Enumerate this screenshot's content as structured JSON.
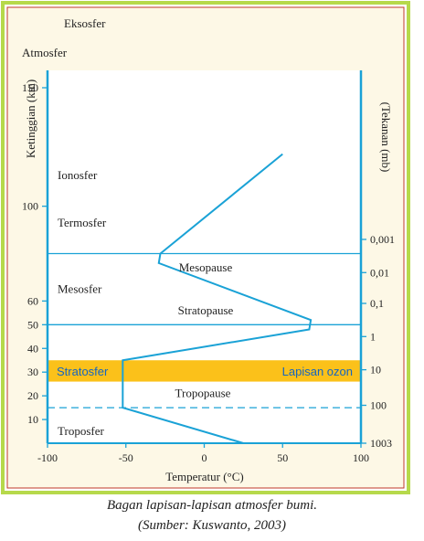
{
  "caption": {
    "line1": "Bagan lapisan-lapisan atmosfer bumi.",
    "line2": "(Sumber: Kuswanto, 2003)"
  },
  "colors": {
    "frame_green": "#b6d94b",
    "frame_red": "#c0392b",
    "background_cream": "#fdf8e6",
    "plot_background": "#ffffff",
    "axis_blue": "#1aa2d6",
    "profile_blue": "#1aa2d6",
    "ozone_band": "#fbc11a",
    "stratosfer_text": "#1565c0",
    "text": "#222222"
  },
  "chart_data": {
    "type": "line",
    "title": "",
    "top_labels": [
      "Eksosfer",
      "Atmosfer"
    ],
    "xlabel": "Temperatur (°C)",
    "ylabel": "Ketinggian (km)",
    "y2label": "(Tekanan (mb)",
    "xlim": [
      -100,
      100
    ],
    "ylim": [
      0,
      150
    ],
    "x_ticks": [
      -100,
      -50,
      0,
      50,
      100
    ],
    "y_ticks": [
      10,
      20,
      30,
      40,
      50,
      60,
      100,
      150
    ],
    "pressure_ticks": [
      {
        "label": "0,001",
        "height_km": 86
      },
      {
        "label": "0,01",
        "height_km": 72
      },
      {
        "label": "0,1",
        "height_km": 59
      },
      {
        "label": "1",
        "height_km": 45
      },
      {
        "label": "10",
        "height_km": 31
      },
      {
        "label": "100",
        "height_km": 16
      },
      {
        "label": "1003",
        "height_km": 0
      }
    ],
    "series": [
      {
        "values": [
          {
            "x": 25,
            "y": 0
          },
          {
            "x": -52,
            "y": 15
          },
          {
            "x": -52,
            "y": 35
          },
          {
            "x": 67,
            "y": 48
          },
          {
            "x": 68,
            "y": 52
          },
          {
            "x": -29,
            "y": 76
          },
          {
            "x": -28,
            "y": 80
          },
          {
            "x": 50,
            "y": 122
          }
        ]
      }
    ],
    "boundaries": [
      {
        "name": "Mesopause",
        "height_km": 80,
        "style": "solid"
      },
      {
        "name": "Stratopause",
        "height_km": 50,
        "style": "solid"
      },
      {
        "name": "Tropopause",
        "height_km": 15,
        "style": "dashed"
      }
    ],
    "layers": [
      {
        "name": "Ionosfer",
        "height_km": 113
      },
      {
        "name": "Termosfer",
        "height_km": 93
      },
      {
        "name": "Mesosfer",
        "height_km": 65
      },
      {
        "name": "Troposfer",
        "height_km": 5
      }
    ],
    "ozone_band": {
      "label_left": "Stratosfer",
      "label_right": "Lapisan ozon",
      "from_km": 26,
      "to_km": 35
    }
  }
}
